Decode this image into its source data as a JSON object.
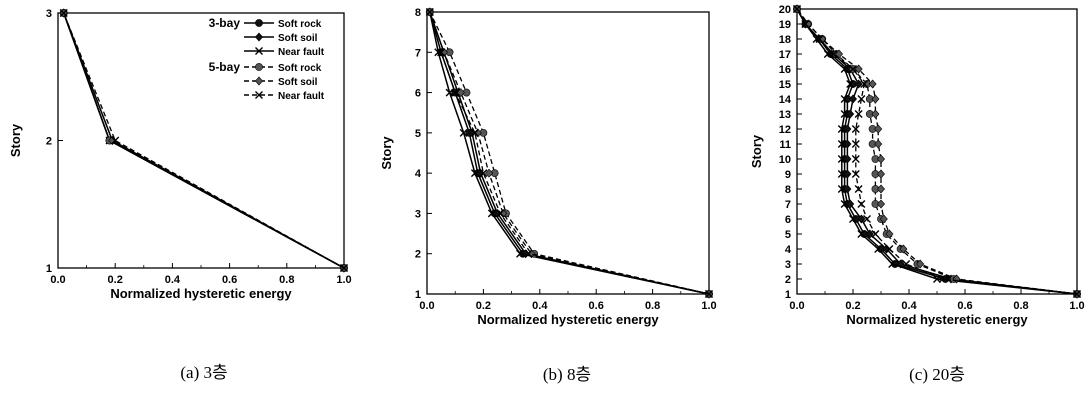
{
  "chart_data": [
    {
      "type": "line",
      "caption": "(a) 3층",
      "xlabel": "Normalized hysteretic energy",
      "ylabel": "Story",
      "xlim": [
        0,
        1
      ],
      "ylim": [
        1,
        3
      ],
      "xticks": [
        "0.0",
        "0.2",
        "0.4",
        "0.6",
        "0.8",
        "1.0"
      ],
      "yticks": [
        "1",
        "2",
        "3"
      ],
      "legend": {
        "placement": "top-right",
        "groups": [
          {
            "label": "3-bay",
            "line": "solid",
            "entries": [
              "Soft rock",
              "Soft soil",
              "Near fault"
            ]
          },
          {
            "label": "5-bay",
            "line": "dashed",
            "entries": [
              "Soft rock",
              "Soft soil",
              "Near fault"
            ]
          }
        ]
      },
      "series": [
        {
          "name": "Soft rock",
          "group": "3-bay",
          "marker": "circle",
          "line": "solid",
          "x": [
            1.0,
            0.18,
            0.02
          ],
          "y": [
            1,
            2,
            3
          ]
        },
        {
          "name": "Soft soil",
          "group": "3-bay",
          "marker": "diamond",
          "line": "solid",
          "x": [
            1.0,
            0.19,
            0.02
          ],
          "y": [
            1,
            2,
            3
          ]
        },
        {
          "name": "Near fault",
          "group": "3-bay",
          "marker": "cross",
          "line": "solid",
          "x": [
            1.0,
            0.18,
            0.02
          ],
          "y": [
            1,
            2,
            3
          ]
        },
        {
          "name": "Soft rock",
          "group": "5-bay",
          "marker": "circle",
          "line": "dashed",
          "x": [
            1.0,
            0.18,
            0.02
          ],
          "y": [
            1,
            2,
            3
          ]
        },
        {
          "name": "Soft soil",
          "group": "5-bay",
          "marker": "diamond",
          "line": "dashed",
          "x": [
            1.0,
            0.19,
            0.02
          ],
          "y": [
            1,
            2,
            3
          ]
        },
        {
          "name": "Near fault",
          "group": "5-bay",
          "marker": "cross",
          "line": "dashed",
          "x": [
            1.0,
            0.2,
            0.02
          ],
          "y": [
            1,
            2,
            3
          ]
        }
      ]
    },
    {
      "type": "line",
      "caption": "(b) 8층",
      "xlabel": "Normalized hysteretic energy",
      "ylabel": "Story",
      "xlim": [
        0,
        1
      ],
      "ylim": [
        1,
        8
      ],
      "xticks": [
        "0.0",
        "0.2",
        "0.4",
        "0.6",
        "0.8",
        "1.0"
      ],
      "yticks": [
        "1",
        "2",
        "3",
        "4",
        "5",
        "6",
        "7",
        "8"
      ],
      "series": [
        {
          "name": "Soft rock",
          "group": "3-bay",
          "marker": "circle",
          "line": "solid",
          "x": [
            1.0,
            0.34,
            0.24,
            0.18,
            0.15,
            0.1,
            0.05,
            0.01
          ],
          "y": [
            1,
            2,
            3,
            4,
            5,
            6,
            7,
            8
          ]
        },
        {
          "name": "Soft soil",
          "group": "3-bay",
          "marker": "diamond",
          "line": "solid",
          "x": [
            1.0,
            0.35,
            0.25,
            0.19,
            0.16,
            0.11,
            0.06,
            0.01
          ],
          "y": [
            1,
            2,
            3,
            4,
            5,
            6,
            7,
            8
          ]
        },
        {
          "name": "Near fault",
          "group": "3-bay",
          "marker": "cross",
          "line": "solid",
          "x": [
            1.0,
            0.33,
            0.23,
            0.17,
            0.13,
            0.08,
            0.04,
            0.01
          ],
          "y": [
            1,
            2,
            3,
            4,
            5,
            6,
            7,
            8
          ]
        },
        {
          "name": "Soft rock",
          "group": "5-bay",
          "marker": "circle",
          "line": "dashed",
          "x": [
            1.0,
            0.38,
            0.28,
            0.24,
            0.2,
            0.14,
            0.08,
            0.01
          ],
          "y": [
            1,
            2,
            3,
            4,
            5,
            6,
            7,
            8
          ]
        },
        {
          "name": "Soft soil",
          "group": "5-bay",
          "marker": "diamond",
          "line": "dashed",
          "x": [
            1.0,
            0.37,
            0.27,
            0.22,
            0.18,
            0.12,
            0.06,
            0.01
          ],
          "y": [
            1,
            2,
            3,
            4,
            5,
            6,
            7,
            8
          ]
        },
        {
          "name": "Near fault",
          "group": "5-bay",
          "marker": "cross",
          "line": "dashed",
          "x": [
            1.0,
            0.36,
            0.26,
            0.2,
            0.17,
            0.1,
            0.05,
            0.01
          ],
          "y": [
            1,
            2,
            3,
            4,
            5,
            6,
            7,
            8
          ]
        }
      ]
    },
    {
      "type": "line",
      "caption": "(c) 20층",
      "xlabel": "Normalized hysteretic energy",
      "ylabel": "Story",
      "xlim": [
        0,
        1
      ],
      "ylim": [
        1,
        20
      ],
      "xticks": [
        "0.0",
        "0.2",
        "0.4",
        "0.6",
        "0.8",
        "1.0"
      ],
      "yticks": [
        "1",
        "2",
        "3",
        "4",
        "5",
        "6",
        "7",
        "8",
        "9",
        "10",
        "11",
        "12",
        "13",
        "14",
        "15",
        "16",
        "17",
        "18",
        "19",
        "20"
      ],
      "series": [
        {
          "name": "Soft rock",
          "group": "3-bay",
          "marker": "circle",
          "line": "solid",
          "x": [
            1.0,
            0.53,
            0.35,
            0.3,
            0.24,
            0.21,
            0.18,
            0.17,
            0.17,
            0.17,
            0.17,
            0.17,
            0.18,
            0.18,
            0.2,
            0.18,
            0.12,
            0.08,
            0.03,
            0.0
          ],
          "y": [
            1,
            2,
            3,
            4,
            5,
            6,
            7,
            8,
            9,
            10,
            11,
            12,
            13,
            14,
            15,
            16,
            17,
            18,
            19,
            20
          ]
        },
        {
          "name": "Soft soil",
          "group": "3-bay",
          "marker": "diamond",
          "line": "solid",
          "x": [
            1.0,
            0.55,
            0.37,
            0.32,
            0.26,
            0.23,
            0.19,
            0.18,
            0.18,
            0.18,
            0.18,
            0.18,
            0.19,
            0.2,
            0.22,
            0.19,
            0.13,
            0.08,
            0.03,
            0.0
          ],
          "y": [
            1,
            2,
            3,
            4,
            5,
            6,
            7,
            8,
            9,
            10,
            11,
            12,
            13,
            14,
            15,
            16,
            17,
            18,
            19,
            20
          ]
        },
        {
          "name": "Near fault",
          "group": "3-bay",
          "marker": "cross",
          "line": "solid",
          "x": [
            1.0,
            0.5,
            0.34,
            0.29,
            0.23,
            0.2,
            0.17,
            0.16,
            0.16,
            0.16,
            0.16,
            0.16,
            0.17,
            0.17,
            0.19,
            0.17,
            0.11,
            0.07,
            0.03,
            0.0
          ],
          "y": [
            1,
            2,
            3,
            4,
            5,
            6,
            7,
            8,
            9,
            10,
            11,
            12,
            13,
            14,
            15,
            16,
            17,
            18,
            19,
            20
          ]
        },
        {
          "name": "Soft rock",
          "group": "5-bay",
          "marker": "circle",
          "line": "dashed",
          "x": [
            1.0,
            0.56,
            0.43,
            0.37,
            0.32,
            0.3,
            0.28,
            0.28,
            0.28,
            0.28,
            0.27,
            0.27,
            0.26,
            0.26,
            0.25,
            0.2,
            0.14,
            0.09,
            0.04,
            0.0
          ],
          "y": [
            1,
            2,
            3,
            4,
            5,
            6,
            7,
            8,
            9,
            10,
            11,
            12,
            13,
            14,
            15,
            16,
            17,
            18,
            19,
            20
          ]
        },
        {
          "name": "Soft soil",
          "group": "5-bay",
          "marker": "diamond",
          "line": "dashed",
          "x": [
            1.0,
            0.57,
            0.44,
            0.38,
            0.33,
            0.31,
            0.3,
            0.3,
            0.3,
            0.3,
            0.29,
            0.29,
            0.28,
            0.28,
            0.27,
            0.22,
            0.15,
            0.09,
            0.04,
            0.0
          ],
          "y": [
            1,
            2,
            3,
            4,
            5,
            6,
            7,
            8,
            9,
            10,
            11,
            12,
            13,
            14,
            15,
            16,
            17,
            18,
            19,
            20
          ]
        },
        {
          "name": "Near fault",
          "group": "5-bay",
          "marker": "cross",
          "line": "dashed",
          "x": [
            1.0,
            0.52,
            0.39,
            0.33,
            0.28,
            0.25,
            0.23,
            0.22,
            0.21,
            0.21,
            0.21,
            0.21,
            0.22,
            0.23,
            0.24,
            0.2,
            0.13,
            0.08,
            0.03,
            0.0
          ],
          "y": [
            1,
            2,
            3,
            4,
            5,
            6,
            7,
            8,
            9,
            10,
            11,
            12,
            13,
            14,
            15,
            16,
            17,
            18,
            19,
            20
          ]
        }
      ]
    }
  ]
}
